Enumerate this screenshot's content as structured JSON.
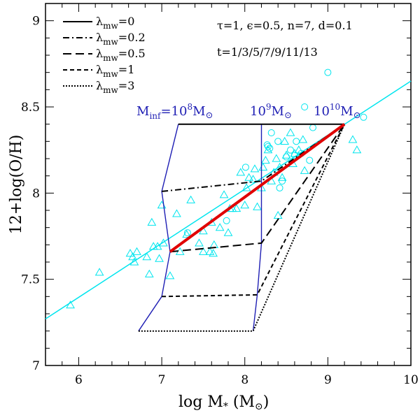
{
  "chart_data": {
    "type": "line",
    "xlabel": "log M",
    "xlabel_sub": "*",
    "xlabel_unit": " (M",
    "xlabel_unit_end": ")",
    "ylabel": "12+log(O/H)",
    "xlim": [
      5.6,
      10
    ],
    "ylim": [
      7,
      9.1
    ],
    "x_ticks": [
      6,
      7,
      8,
      9,
      10
    ],
    "y_ticks": [
      7,
      7.5,
      8,
      8.5,
      9
    ],
    "x_tick_labels": [
      "6",
      "7",
      "8",
      "9",
      "10"
    ],
    "y_tick_labels": [
      "7",
      "7.5",
      "8",
      "8.5",
      "9"
    ],
    "params_line1": "τ=1, ϵ=0.5, n=7, d=0.1",
    "params_line2": "t=1/3/5/7/9/11/13",
    "legend": [
      {
        "symbol": "λ",
        "sub": "mw",
        "value": "=0",
        "dash": ""
      },
      {
        "symbol": "λ",
        "sub": "mw",
        "value": "=0.2",
        "dash": "9,4,2,4"
      },
      {
        "symbol": "λ",
        "sub": "mw",
        "value": "=0.5",
        "dash": "12,6"
      },
      {
        "symbol": "λ",
        "sub": "mw",
        "value": "=1",
        "dash": "6,4"
      },
      {
        "symbol": "λ",
        "sub": "mw",
        "value": "=3",
        "dash": "2,2"
      }
    ],
    "mass_labels": [
      {
        "base": "M",
        "sub": "inf",
        "mid": "=10",
        "sup": "8",
        "unit": "M",
        "x": 7.2
      },
      {
        "base": "",
        "sub": "",
        "mid": "10",
        "sup": "9",
        "unit": "M",
        "x": 8.2
      },
      {
        "base": "",
        "sub": "",
        "mid": "10",
        "sup": "10",
        "unit": "M",
        "x": 9.2
      }
    ],
    "fit_line": {
      "color": "#00e5ee",
      "points": [
        [
          5.6,
          7.27
        ],
        [
          10,
          8.65
        ]
      ]
    },
    "red_line": {
      "color": "#e00000",
      "points": [
        [
          7.1,
          7.66
        ],
        [
          9.2,
          8.4
        ]
      ]
    },
    "model_tracks": [
      {
        "lambda": "0",
        "dash": "",
        "points": [
          [
            7.2,
            8.4
          ],
          [
            9.2,
            8.4
          ]
        ]
      },
      {
        "lambda": "0.2",
        "dash": "9,4,2,4",
        "points": [
          [
            7.0,
            8.01
          ],
          [
            8.2,
            8.07
          ],
          [
            9.2,
            8.4
          ]
        ]
      },
      {
        "lambda": "0.5",
        "dash": "12,6",
        "points": [
          [
            7.1,
            7.66
          ],
          [
            8.2,
            7.71
          ],
          [
            9.2,
            8.4
          ]
        ]
      },
      {
        "lambda": "1",
        "dash": "6,4",
        "points": [
          [
            7.0,
            7.4
          ],
          [
            8.15,
            7.41
          ],
          [
            9.2,
            8.4
          ]
        ]
      },
      {
        "lambda": "3",
        "dash": "2,2",
        "points": [
          [
            6.72,
            7.2
          ],
          [
            8.1,
            7.2
          ],
          [
            9.2,
            8.4
          ]
        ]
      }
    ],
    "isomass_lines": [
      {
        "mass": "10^8",
        "color": "#1f1fb4",
        "points": [
          [
            7.2,
            8.4
          ],
          [
            7.0,
            8.01
          ],
          [
            7.1,
            7.66
          ],
          [
            7.0,
            7.4
          ],
          [
            6.72,
            7.2
          ]
        ]
      },
      {
        "mass": "10^9",
        "color": "#1f1fb4",
        "points": [
          [
            8.2,
            8.4
          ],
          [
            8.2,
            8.07
          ],
          [
            8.2,
            7.71
          ],
          [
            8.15,
            7.41
          ],
          [
            8.1,
            7.2
          ]
        ]
      }
    ],
    "triangles": [
      [
        5.9,
        7.35
      ],
      [
        6.25,
        7.54
      ],
      [
        6.62,
        7.65
      ],
      [
        6.65,
        7.63
      ],
      [
        6.67,
        7.6
      ],
      [
        6.7,
        7.66
      ],
      [
        6.82,
        7.63
      ],
      [
        6.85,
        7.53
      ],
      [
        6.88,
        7.83
      ],
      [
        6.9,
        7.69
      ],
      [
        6.95,
        7.69
      ],
      [
        6.97,
        7.62
      ],
      [
        7.0,
        7.93
      ],
      [
        7.02,
        7.71
      ],
      [
        7.1,
        7.52
      ],
      [
        7.18,
        7.88
      ],
      [
        7.22,
        7.66
      ],
      [
        7.3,
        7.76
      ],
      [
        7.35,
        7.96
      ],
      [
        7.45,
        7.71
      ],
      [
        7.5,
        7.78
      ],
      [
        7.5,
        7.66
      ],
      [
        7.58,
        7.66
      ],
      [
        7.6,
        7.83
      ],
      [
        7.62,
        7.65
      ],
      [
        7.63,
        7.7
      ],
      [
        7.7,
        7.8
      ],
      [
        7.75,
        7.99
      ],
      [
        7.8,
        7.77
      ],
      [
        7.82,
        7.91
      ],
      [
        7.85,
        7.91
      ],
      [
        7.9,
        7.91
      ],
      [
        7.95,
        8.12
      ],
      [
        8.0,
        7.93
      ],
      [
        8.02,
        8.03
      ],
      [
        8.05,
        8.09
      ],
      [
        8.1,
        8.08
      ],
      [
        8.12,
        8.14
      ],
      [
        8.15,
        7.92
      ],
      [
        8.2,
        8.03
      ],
      [
        8.22,
        8.15
      ],
      [
        8.25,
        8.19
      ],
      [
        8.28,
        8.25
      ],
      [
        8.32,
        8.07
      ],
      [
        8.35,
        8.12
      ],
      [
        8.38,
        8.2
      ],
      [
        8.4,
        7.87
      ],
      [
        8.42,
        8.15
      ],
      [
        8.45,
        8.09
      ],
      [
        8.48,
        8.3
      ],
      [
        8.5,
        8.22
      ],
      [
        8.55,
        8.35
      ],
      [
        8.58,
        8.17
      ],
      [
        8.6,
        8.23
      ],
      [
        8.65,
        8.25
      ],
      [
        8.7,
        8.31
      ],
      [
        8.72,
        8.13
      ],
      [
        9.3,
        8.31
      ],
      [
        9.35,
        8.25
      ]
    ],
    "circles": [
      [
        7.31,
        7.77
      ],
      [
        7.78,
        7.84
      ],
      [
        8.01,
        8.15
      ],
      [
        8.27,
        8.28
      ],
      [
        8.28,
        8.27
      ],
      [
        8.3,
        8.26
      ],
      [
        8.32,
        8.35
      ],
      [
        8.4,
        8.3
      ],
      [
        8.42,
        8.03
      ],
      [
        8.45,
        8.07
      ],
      [
        8.5,
        8.21
      ],
      [
        8.55,
        8.25
      ],
      [
        8.6,
        8.22
      ],
      [
        8.62,
        8.3
      ],
      [
        8.68,
        8.23
      ],
      [
        8.72,
        8.5
      ],
      [
        8.78,
        8.19
      ],
      [
        8.82,
        8.38
      ],
      [
        9.0,
        8.7
      ],
      [
        9.43,
        8.44
      ]
    ],
    "colors": {
      "data_points": "#00e5ee",
      "model": "#000000",
      "isomass": "#1f1fb4",
      "highlight": "#e00000"
    }
  }
}
